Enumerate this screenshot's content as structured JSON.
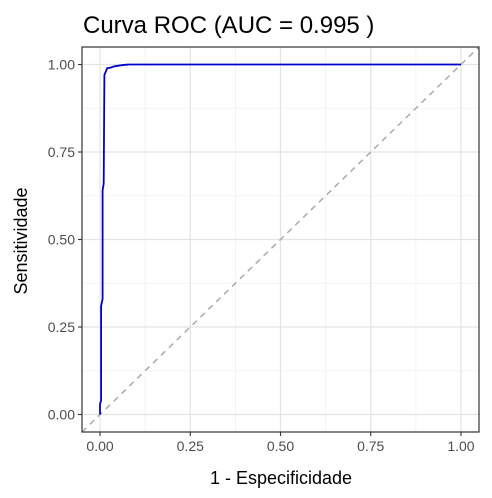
{
  "chart_data": {
    "type": "line",
    "title": "Curva ROC (AUC = 0.995 )",
    "xlabel": "1 - Especificidade",
    "ylabel": "Sensitividade",
    "xlim": [
      -0.05,
      1.05
    ],
    "ylim": [
      -0.05,
      1.05
    ],
    "xticks": [
      "0.00",
      "0.25",
      "0.50",
      "0.75",
      "1.00"
    ],
    "yticks": [
      "0.00",
      "0.25",
      "0.50",
      "0.75",
      "1.00"
    ],
    "grid": true,
    "series": [
      {
        "color": "#0000CC",
        "x": [
          0.0,
          0.0,
          0.003,
          0.003,
          0.007,
          0.007,
          0.01,
          0.012,
          0.02,
          0.025,
          0.04,
          0.06,
          0.08,
          1.0
        ],
        "y": [
          0.0,
          0.03,
          0.04,
          0.31,
          0.33,
          0.64,
          0.66,
          0.97,
          0.99,
          0.99,
          0.995,
          0.998,
          1.0,
          1.0
        ]
      },
      {
        "color": "#AAAAAA",
        "style": "dashed",
        "x": [
          -0.05,
          1.05
        ],
        "y": [
          -0.05,
          1.05
        ]
      }
    ]
  }
}
